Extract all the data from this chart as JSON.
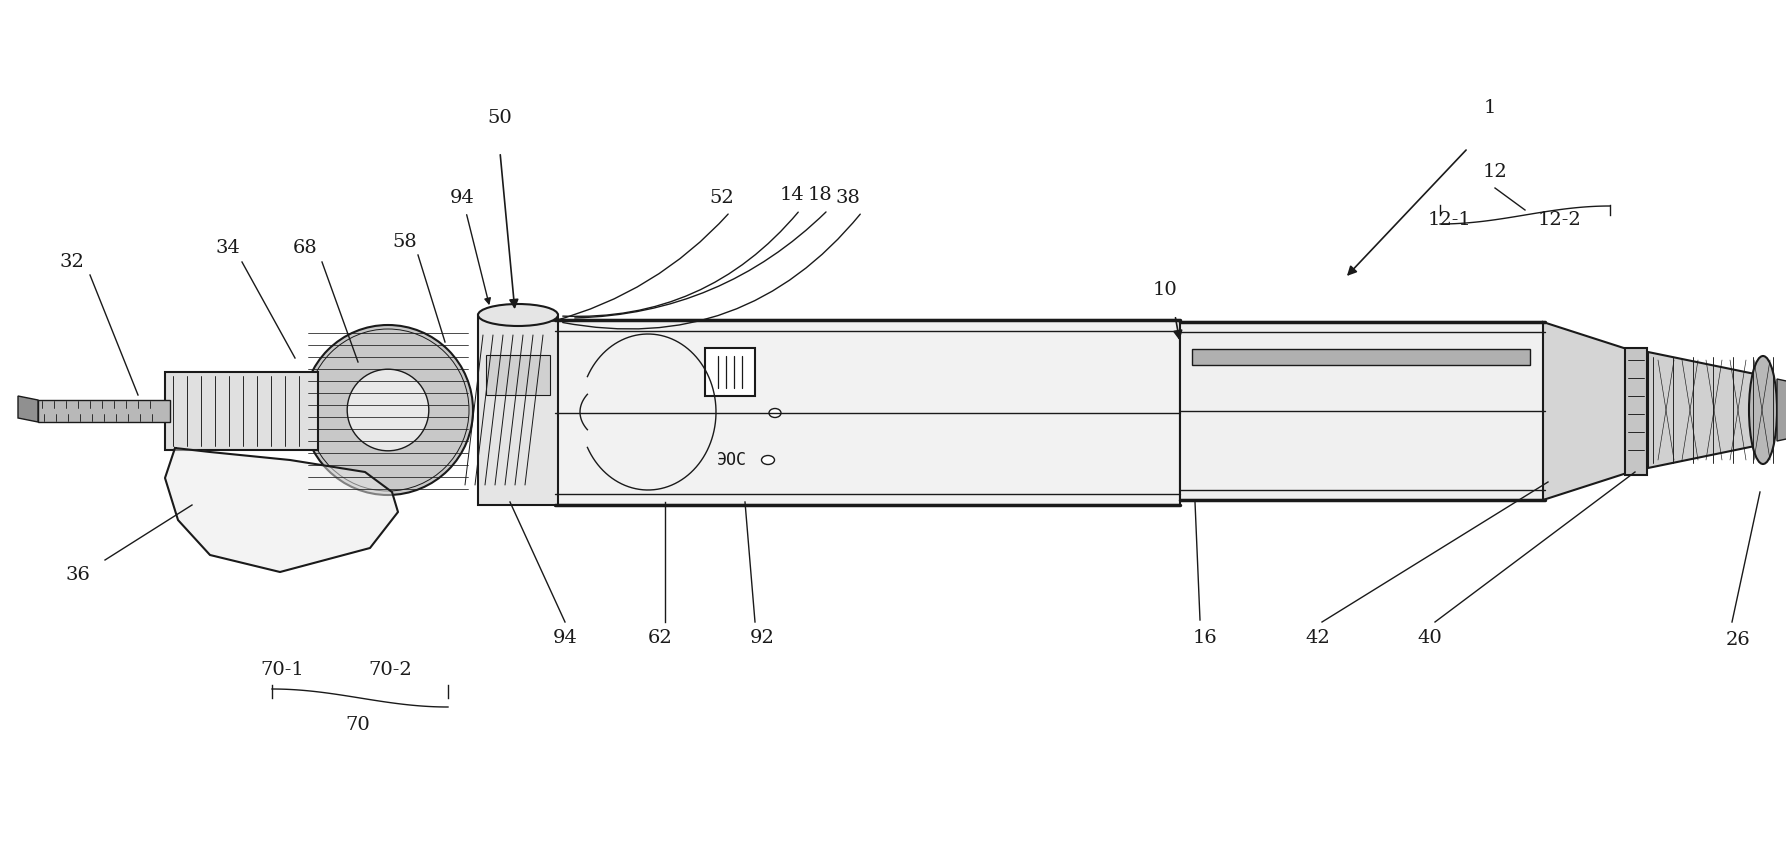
{
  "bg_color": "#ffffff",
  "line_color": "#1a1a1a",
  "label_color": "#1a1a1a",
  "fig_width": 17.86,
  "fig_height": 8.56
}
